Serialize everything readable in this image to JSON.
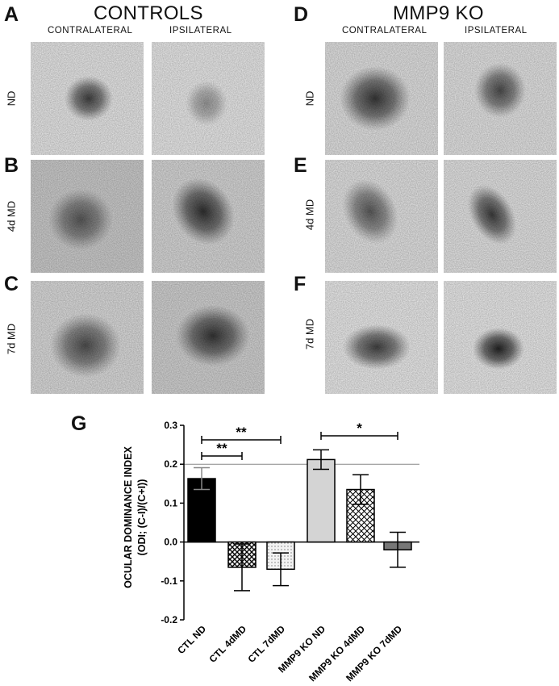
{
  "panels": {
    "A": "A",
    "B": "B",
    "C": "C",
    "D": "D",
    "E": "E",
    "F": "F",
    "G": "G"
  },
  "groups": {
    "controls": "CONTROLS",
    "ko": "MMP9 KO"
  },
  "columns": {
    "contra": "CONTRALATERAL",
    "ipsi": "IPSILATERAL"
  },
  "rows": {
    "nd": "ND",
    "md4": "4d MD",
    "md7": "7d MD"
  },
  "chart_data": {
    "type": "bar",
    "ylabel_line1": "OCULAR DOMINANCE INDEX",
    "ylabel_line2": "(ODI; (C-I)/(C+I))",
    "ylim": [
      -0.2,
      0.3
    ],
    "yticks": [
      "-0.2",
      "-0.1",
      "0.0",
      "0.1",
      "0.2",
      "0.3"
    ],
    "reference_line": 0.2,
    "categories": [
      "CTL ND",
      "CTL 4dMD",
      "CTL 7dMD",
      "MMP9 KO  ND",
      "MMP9 KO 4dMD",
      "MMP9 KO 7dMD"
    ],
    "values": [
      0.163,
      -0.065,
      -0.07,
      0.212,
      0.135,
      -0.02
    ],
    "errors": [
      0.028,
      0.06,
      0.042,
      0.025,
      0.038,
      0.045
    ],
    "colors": [
      "#000000",
      "#ffffff",
      "#ffffff",
      "#d4d4d4",
      "#ffffff",
      "#777777"
    ],
    "patterns": [
      "solid",
      "crosshatch-dense",
      "dots",
      "solid",
      "crosshatch",
      "solid"
    ],
    "significance": [
      {
        "from": 0,
        "to": 1,
        "label": "**"
      },
      {
        "from": 0,
        "to": 2,
        "label": "**"
      },
      {
        "from": 3,
        "to": 5,
        "label": "*"
      }
    ]
  }
}
